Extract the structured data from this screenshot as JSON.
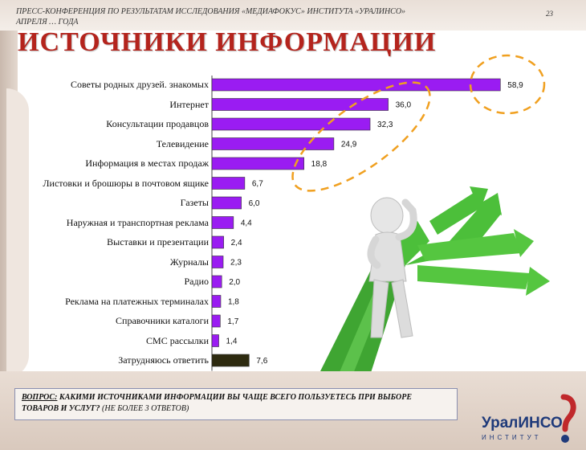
{
  "header": {
    "conference_text": "ПРЕСС-КОНФЕРЕНЦИЯ ПО РЕЗУЛЬТАТАМ ИССЛЕДОВАНИЯ «МЕДИАФОКУС» ИНСТИТУТА «УРАЛИНСО»",
    "date_fragment": "АПРЕЛЯ … ГОДА",
    "page_number": "23"
  },
  "title": "ИСТОЧНИКИ ИНФОРМАЦИИ",
  "chart_data": {
    "type": "bar",
    "orientation": "horizontal",
    "categories": [
      "Советы родных друзей. знакомых",
      "Интернет",
      "Консультации  продавцов",
      "Телевидение",
      "Информация  в местах продаж",
      "Листовки и брошюры  в почтовом ящике",
      "Газеты",
      "Наружная и транспортная реклама",
      "Выставки и презентации",
      "Журналы",
      "Радио",
      "Реклама на платежных  терминалах",
      "Справочники каталоги",
      "СМС рассылки",
      "Затрудняюсь ответить"
    ],
    "values": [
      58.9,
      36.0,
      32.3,
      24.9,
      18.8,
      6.7,
      6.0,
      4.4,
      2.4,
      2.3,
      2.0,
      1.8,
      1.7,
      1.4,
      7.6
    ],
    "value_labels": [
      "58,9",
      "36,0",
      "32,3",
      "24,9",
      "18,8",
      "6,7",
      "6,0",
      "4,4",
      "2,4",
      "2,3",
      "2,0",
      "1,8",
      "1,7",
      "1,4",
      "7,6"
    ],
    "colors": {
      "main": "#9a1cf2",
      "last": "#2e2b10",
      "highlight_ellipse": "#f0a020"
    },
    "xlim": [
      0,
      60
    ],
    "grid": false,
    "legend": "none"
  },
  "question": {
    "label": "ВОПРОС:",
    "text": "КАКИМИ ИСТОЧНИКАМИ ИНФОРМАЦИИ ВЫ ЧАЩЕ ВСЕГО ПОЛЬЗУЕТЕСЬ ПРИ ВЫБОРЕ ТОВАРОВ И УСЛУГ?",
    "note": "(НЕ БОЛЕЕ 3 ОТВЕТОВ)"
  },
  "logo": {
    "name": "УралИНСО",
    "subtitle": "ИНСТИТУТ"
  }
}
